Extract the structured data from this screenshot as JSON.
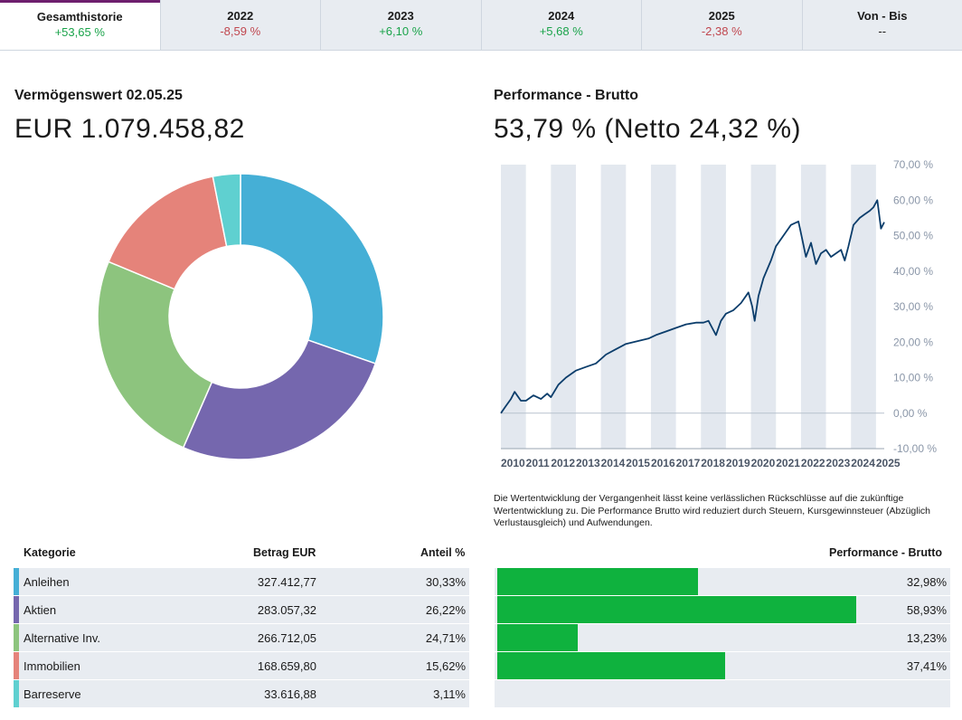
{
  "tabs": [
    {
      "title": "Gesamthistorie",
      "value": "+53,65 %",
      "tone": "pos",
      "active": true
    },
    {
      "title": "2022",
      "value": "-8,59 %",
      "tone": "neg",
      "active": false
    },
    {
      "title": "2023",
      "value": "+6,10 %",
      "tone": "pos",
      "active": false
    },
    {
      "title": "2024",
      "value": "+5,68 %",
      "tone": "pos",
      "active": false
    },
    {
      "title": "2025",
      "value": "-2,38 %",
      "tone": "neg",
      "active": false
    },
    {
      "title": "Von - Bis",
      "value": "--",
      "tone": "neu",
      "active": false
    }
  ],
  "asset": {
    "label": "Vermögenswert 02.05.25",
    "value": "EUR 1.079.458,82"
  },
  "performance": {
    "label": "Performance - Brutto",
    "value": "53,79 % (Netto 24,32 %)"
  },
  "disclaimer": "Die Wertentwicklung der Vergangenheit lässt keine verlässlichen Rückschlüsse auf die zukünftige Wertentwicklung zu. Die Performance Brutto wird reduziert durch Steuern, Kursgewinnsteuer (Abzüglich Verlustausgleich) und Aufwendungen.",
  "table": {
    "headers": {
      "category": "Kategorie",
      "amount": "Betrag EUR",
      "share": "Anteil %",
      "perf": "Performance - Brutto"
    },
    "rows": [
      {
        "category": "Anleihen",
        "amount": "327.412,77",
        "share": "30,33%",
        "perf": "32,98%",
        "perf_value": 32.98,
        "color": "#45afd6"
      },
      {
        "category": "Aktien",
        "amount": "283.057,32",
        "share": "26,22%",
        "perf": "58,93%",
        "perf_value": 58.93,
        "color": "#7567ae"
      },
      {
        "category": "Alternative Inv.",
        "amount": "266.712,05",
        "share": "24,71%",
        "perf": "13,23%",
        "perf_value": 13.23,
        "color": "#8dc47e"
      },
      {
        "category": "Immobilien",
        "amount": "168.659,80",
        "share": "15,62%",
        "perf": "37,41%",
        "perf_value": 37.41,
        "color": "#e5837a"
      },
      {
        "category": "Barreserve",
        "amount": "33.616,88",
        "share": "3,11%",
        "perf": "",
        "perf_value": null,
        "color": "#5fd0d0"
      }
    ]
  },
  "chart_data": [
    {
      "type": "pie",
      "categories": [
        "Anleihen",
        "Aktien",
        "Alternative Inv.",
        "Immobilien",
        "Barreserve"
      ],
      "values": [
        30.33,
        26.22,
        24.71,
        15.62,
        3.11
      ],
      "colors": [
        "#45afd6",
        "#7567ae",
        "#8dc47e",
        "#e5837a",
        "#5fd0d0"
      ],
      "donut": true
    },
    {
      "type": "line",
      "x_ticks": [
        "2010",
        "2011",
        "2012",
        "2013",
        "2014",
        "2015",
        "2016",
        "2017",
        "2018",
        "2019",
        "2020",
        "2021",
        "2022",
        "2023",
        "2024",
        "2025"
      ],
      "y_ticks": [
        "70,00 %",
        "60,00 %",
        "50,00 %",
        "40,00 %",
        "30,00 %",
        "20,00 %",
        "10,00 %",
        "0,00 %",
        "-10,00 %"
      ],
      "ylim": [
        -10,
        70
      ],
      "xlim": [
        2010.0,
        2025.33
      ],
      "grid": "alternating vertical year bands",
      "line_color": "#0b3d6b",
      "series": [
        {
          "x": [
            2010.0,
            2010.2,
            2010.4,
            2010.55,
            2010.8,
            2011.0,
            2011.3,
            2011.6,
            2011.85,
            2012.0,
            2012.3,
            2012.6,
            2013.0,
            2013.4,
            2013.8,
            2014.2,
            2014.6,
            2015.0,
            2015.3,
            2015.6,
            2015.9,
            2016.2,
            2016.6,
            2017.0,
            2017.4,
            2017.8,
            2018.1,
            2018.3,
            2018.45,
            2018.6,
            2018.8,
            2019.0,
            2019.3,
            2019.6,
            2019.9,
            2020.05,
            2020.15,
            2020.3,
            2020.5,
            2020.8,
            2021.0,
            2021.3,
            2021.6,
            2021.9,
            2022.05,
            2022.2,
            2022.4,
            2022.6,
            2022.8,
            2023.0,
            2023.2,
            2023.4,
            2023.6,
            2023.75,
            2023.9,
            2024.1,
            2024.35,
            2024.55,
            2024.75,
            2024.9,
            2025.05,
            2025.2,
            2025.33
          ],
          "y": [
            0.0,
            2.0,
            4.0,
            6.0,
            3.5,
            3.5,
            5.0,
            4.0,
            5.5,
            4.5,
            8.0,
            10.0,
            12.0,
            13.0,
            14.0,
            16.5,
            18.0,
            19.5,
            20.0,
            20.5,
            21.0,
            22.0,
            23.0,
            24.0,
            25.0,
            25.5,
            25.5,
            26.0,
            24.0,
            22.0,
            26.0,
            28.0,
            29.0,
            31.0,
            34.0,
            30.0,
            26.0,
            33.0,
            38.0,
            43.0,
            47.0,
            50.0,
            53.0,
            54.0,
            49.0,
            44.0,
            48.0,
            42.0,
            45.0,
            46.0,
            44.0,
            45.0,
            46.0,
            43.0,
            47.0,
            53.0,
            55.0,
            56.0,
            57.0,
            58.0,
            60.0,
            52.0,
            53.8
          ]
        }
      ]
    }
  ]
}
